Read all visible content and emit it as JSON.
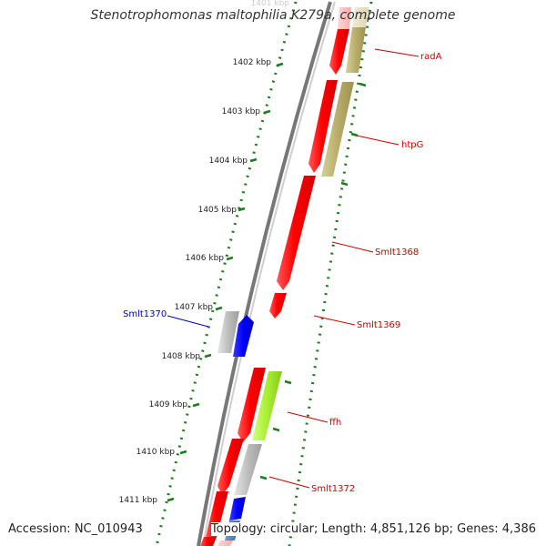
{
  "title": "Stenotrophomonas maltophilia K279a, complete genome",
  "accession_label": "Accession: NC_010943",
  "topology_label": "Topology: circular; Length: 4,851,126 bp; Genes: 4,386",
  "colors": {
    "gene_forward": "#ff0000",
    "gene_reverse": "#0000ff",
    "cds_tan": "#b5aa66",
    "cds_green": "#a6e830",
    "cds_gray": "#bbbbbb",
    "cds_steel": "#4477aa",
    "scale_tick": "#1e7a1e",
    "backbone": "#777777",
    "label_red": "#cc0000",
    "label_blue": "#0000cc"
  },
  "scale_ticks": [
    {
      "label": "1402 kbp"
    },
    {
      "label": "1403 kbp"
    },
    {
      "label": "1404 kbp"
    },
    {
      "label": "1405 kbp"
    },
    {
      "label": "1406 kbp"
    },
    {
      "label": "1407 kbp"
    },
    {
      "label": "1408 kbp"
    },
    {
      "label": "1409 kbp"
    },
    {
      "label": "1410 kbp"
    },
    {
      "label": "1411 kbp"
    }
  ],
  "gene_labels": [
    {
      "name": "radA",
      "color": "#cc0000"
    },
    {
      "name": "htpG",
      "color": "#cc0000"
    },
    {
      "name": "Smlt1368",
      "color": "#cc0000"
    },
    {
      "name": "Smlt1369",
      "color": "#cc0000"
    },
    {
      "name": "Smlt1370",
      "color": "#0000cc"
    },
    {
      "name": "ffh",
      "color": "#cc0000"
    },
    {
      "name": "Smlt1372",
      "color": "#cc0000"
    }
  ]
}
